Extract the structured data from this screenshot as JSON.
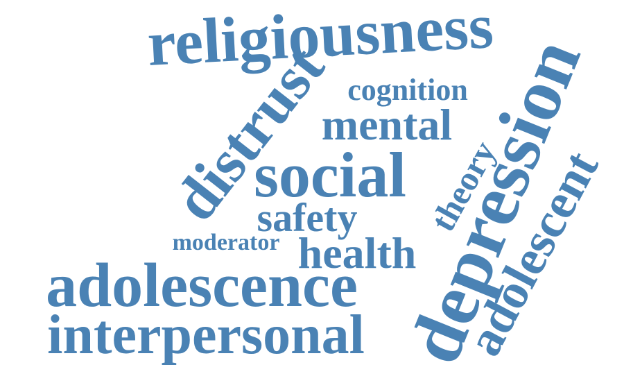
{
  "words": {
    "religiousness": "religiousness",
    "cognition": "cognition",
    "distrust": "distrust",
    "mental": "mental",
    "social": "social",
    "theory": "theory",
    "depression": "depression",
    "adolescent": "adolescent",
    "safety": "safety",
    "moderator": "moderator",
    "health": "health",
    "adolescence": "adolescence",
    "interpersonal": "interpersonal"
  },
  "colors": {
    "word": "#4a82b4",
    "background": "#ffffff"
  }
}
